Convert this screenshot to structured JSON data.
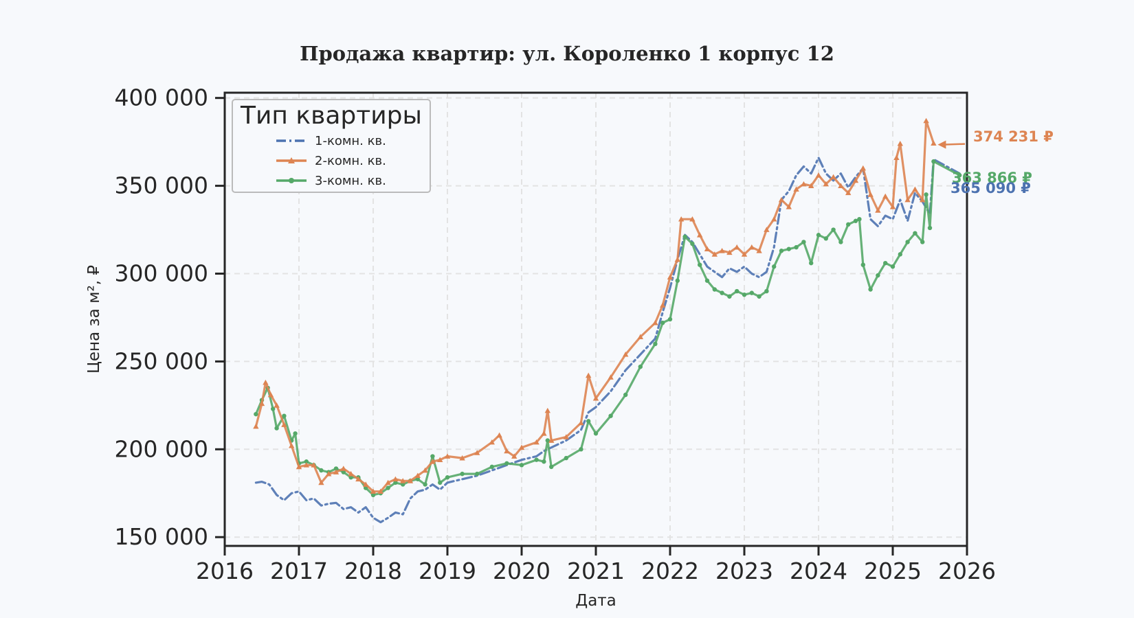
{
  "chart_data": {
    "type": "line",
    "title": "Продажа квартир: ул. Короленко 1 корпус 12",
    "xlabel": "Дата",
    "ylabel": "Цена за м², ₽",
    "xlim": [
      2016,
      2026
    ],
    "ylim": [
      145000,
      403000
    ],
    "xticks": [
      2016,
      2017,
      2018,
      2019,
      2020,
      2021,
      2022,
      2023,
      2024,
      2025,
      2026
    ],
    "yticks": [
      150000,
      200000,
      250000,
      300000,
      350000,
      400000
    ],
    "ytick_labels": [
      "150 000",
      "200 000",
      "250 000",
      "300 000",
      "350 000",
      "400 000"
    ],
    "grid": true,
    "legend": {
      "title": "Тип квартиры",
      "placement": "top-left"
    },
    "series": [
      {
        "name": "1-комн. кв.",
        "color": "#4c72b0",
        "style": "dash-dot",
        "end_label": "365 090 ₽",
        "points": [
          [
            2016.42,
            181000
          ],
          [
            2016.5,
            181500
          ],
          [
            2016.6,
            180000
          ],
          [
            2016.7,
            174000
          ],
          [
            2016.8,
            171000
          ],
          [
            2016.9,
            175000
          ],
          [
            2017.0,
            176000
          ],
          [
            2017.1,
            171000
          ],
          [
            2017.2,
            172000
          ],
          [
            2017.3,
            168000
          ],
          [
            2017.4,
            169000
          ],
          [
            2017.5,
            169500
          ],
          [
            2017.6,
            166000
          ],
          [
            2017.7,
            167000
          ],
          [
            2017.8,
            164000
          ],
          [
            2017.9,
            167000
          ],
          [
            2018.0,
            161000
          ],
          [
            2018.1,
            158500
          ],
          [
            2018.2,
            161000
          ],
          [
            2018.3,
            164000
          ],
          [
            2018.4,
            163000
          ],
          [
            2018.5,
            172000
          ],
          [
            2018.6,
            176000
          ],
          [
            2018.7,
            177000
          ],
          [
            2018.8,
            180000
          ],
          [
            2018.9,
            177000
          ],
          [
            2019.0,
            181000
          ],
          [
            2019.2,
            183000
          ],
          [
            2019.4,
            185000
          ],
          [
            2019.6,
            188000
          ],
          [
            2019.8,
            191000
          ],
          [
            2020.0,
            194000
          ],
          [
            2020.2,
            196000
          ],
          [
            2020.3,
            199000
          ],
          [
            2020.4,
            201000
          ],
          [
            2020.6,
            205000
          ],
          [
            2020.8,
            211000
          ],
          [
            2020.9,
            221000
          ],
          [
            2021.0,
            224000
          ],
          [
            2021.2,
            233000
          ],
          [
            2021.4,
            245000
          ],
          [
            2021.6,
            254000
          ],
          [
            2021.8,
            263000
          ],
          [
            2021.9,
            278000
          ],
          [
            2022.0,
            292000
          ],
          [
            2022.1,
            308000
          ],
          [
            2022.2,
            322000
          ],
          [
            2022.3,
            318000
          ],
          [
            2022.4,
            311000
          ],
          [
            2022.5,
            304000
          ],
          [
            2022.6,
            301000
          ],
          [
            2022.7,
            298000
          ],
          [
            2022.8,
            303000
          ],
          [
            2022.9,
            301000
          ],
          [
            2023.0,
            304000
          ],
          [
            2023.1,
            300000
          ],
          [
            2023.2,
            298000
          ],
          [
            2023.3,
            301000
          ],
          [
            2023.4,
            315000
          ],
          [
            2023.5,
            342000
          ],
          [
            2023.6,
            347000
          ],
          [
            2023.7,
            356000
          ],
          [
            2023.8,
            361000
          ],
          [
            2023.9,
            357000
          ],
          [
            2024.0,
            366000
          ],
          [
            2024.1,
            357000
          ],
          [
            2024.2,
            353000
          ],
          [
            2024.3,
            357000
          ],
          [
            2024.4,
            349000
          ],
          [
            2024.5,
            355000
          ],
          [
            2024.6,
            360000
          ],
          [
            2024.7,
            331000
          ],
          [
            2024.8,
            327000
          ],
          [
            2024.9,
            333000
          ],
          [
            2025.0,
            331000
          ],
          [
            2025.1,
            342000
          ],
          [
            2025.2,
            330000
          ],
          [
            2025.3,
            346000
          ],
          [
            2025.4,
            341000
          ],
          [
            2025.5,
            334000
          ],
          [
            2025.55,
            365090
          ],
          [
            2025.9,
            357000
          ]
        ]
      },
      {
        "name": "2-комн. кв.",
        "color": "#dd8452",
        "style": "solid-triangle",
        "end_label": "374 231 ₽",
        "points": [
          [
            2016.42,
            213000
          ],
          [
            2016.5,
            226000
          ],
          [
            2016.55,
            238000
          ],
          [
            2016.62,
            231000
          ],
          [
            2016.7,
            225000
          ],
          [
            2016.8,
            214000
          ],
          [
            2016.9,
            202000
          ],
          [
            2017.0,
            190000
          ],
          [
            2017.1,
            191000
          ],
          [
            2017.2,
            191000
          ],
          [
            2017.3,
            181000
          ],
          [
            2017.4,
            186000
          ],
          [
            2017.5,
            187000
          ],
          [
            2017.6,
            189000
          ],
          [
            2017.7,
            186000
          ],
          [
            2017.8,
            183000
          ],
          [
            2017.9,
            180000
          ],
          [
            2018.0,
            176000
          ],
          [
            2018.1,
            176000
          ],
          [
            2018.2,
            181000
          ],
          [
            2018.3,
            183000
          ],
          [
            2018.4,
            182000
          ],
          [
            2018.5,
            182000
          ],
          [
            2018.6,
            185000
          ],
          [
            2018.7,
            188000
          ],
          [
            2018.8,
            193000
          ],
          [
            2018.9,
            194000
          ],
          [
            2019.0,
            196000
          ],
          [
            2019.2,
            195000
          ],
          [
            2019.4,
            198000
          ],
          [
            2019.6,
            204000
          ],
          [
            2019.7,
            208000
          ],
          [
            2019.8,
            199000
          ],
          [
            2019.9,
            196000
          ],
          [
            2020.0,
            201000
          ],
          [
            2020.2,
            204000
          ],
          [
            2020.3,
            209000
          ],
          [
            2020.35,
            222000
          ],
          [
            2020.4,
            205000
          ],
          [
            2020.6,
            207000
          ],
          [
            2020.8,
            215000
          ],
          [
            2020.9,
            242000
          ],
          [
            2021.0,
            229000
          ],
          [
            2021.2,
            241000
          ],
          [
            2021.4,
            254000
          ],
          [
            2021.6,
            264000
          ],
          [
            2021.8,
            272000
          ],
          [
            2021.9,
            282000
          ],
          [
            2022.0,
            298000
          ],
          [
            2022.1,
            308000
          ],
          [
            2022.15,
            331000
          ],
          [
            2022.3,
            331000
          ],
          [
            2022.4,
            322000
          ],
          [
            2022.5,
            314000
          ],
          [
            2022.6,
            311000
          ],
          [
            2022.7,
            313000
          ],
          [
            2022.8,
            312000
          ],
          [
            2022.9,
            315000
          ],
          [
            2023.0,
            311000
          ],
          [
            2023.1,
            315000
          ],
          [
            2023.2,
            313000
          ],
          [
            2023.3,
            325000
          ],
          [
            2023.4,
            331000
          ],
          [
            2023.5,
            342000
          ],
          [
            2023.6,
            338000
          ],
          [
            2023.7,
            348000
          ],
          [
            2023.8,
            351000
          ],
          [
            2023.9,
            350000
          ],
          [
            2024.0,
            356000
          ],
          [
            2024.1,
            351000
          ],
          [
            2024.2,
            355000
          ],
          [
            2024.3,
            350000
          ],
          [
            2024.4,
            346000
          ],
          [
            2024.5,
            353000
          ],
          [
            2024.6,
            360000
          ],
          [
            2024.7,
            345000
          ],
          [
            2024.8,
            336000
          ],
          [
            2024.9,
            344000
          ],
          [
            2025.0,
            338000
          ],
          [
            2025.05,
            366000
          ],
          [
            2025.1,
            374000
          ],
          [
            2025.2,
            342000
          ],
          [
            2025.3,
            348000
          ],
          [
            2025.4,
            342000
          ],
          [
            2025.45,
            387000
          ],
          [
            2025.55,
            374231
          ]
        ]
      },
      {
        "name": "3-комн. кв.",
        "color": "#55a868",
        "style": "solid-dot",
        "end_label": "363 866 ₽",
        "points": [
          [
            2016.42,
            220000
          ],
          [
            2016.5,
            228000
          ],
          [
            2016.58,
            235000
          ],
          [
            2016.65,
            223000
          ],
          [
            2016.7,
            212000
          ],
          [
            2016.8,
            219000
          ],
          [
            2016.9,
            205000
          ],
          [
            2016.95,
            209000
          ],
          [
            2017.0,
            192000
          ],
          [
            2017.1,
            193000
          ],
          [
            2017.2,
            191000
          ],
          [
            2017.3,
            188000
          ],
          [
            2017.4,
            187000
          ],
          [
            2017.5,
            189000
          ],
          [
            2017.6,
            187000
          ],
          [
            2017.7,
            184000
          ],
          [
            2017.8,
            184000
          ],
          [
            2017.9,
            178000
          ],
          [
            2018.0,
            174000
          ],
          [
            2018.1,
            175000
          ],
          [
            2018.2,
            178000
          ],
          [
            2018.3,
            181000
          ],
          [
            2018.4,
            180000
          ],
          [
            2018.5,
            182000
          ],
          [
            2018.6,
            183000
          ],
          [
            2018.7,
            180000
          ],
          [
            2018.8,
            196000
          ],
          [
            2018.9,
            181000
          ],
          [
            2019.0,
            184000
          ],
          [
            2019.2,
            186000
          ],
          [
            2019.4,
            186000
          ],
          [
            2019.6,
            190000
          ],
          [
            2019.8,
            192000
          ],
          [
            2020.0,
            191000
          ],
          [
            2020.2,
            194000
          ],
          [
            2020.3,
            193000
          ],
          [
            2020.35,
            205000
          ],
          [
            2020.4,
            190000
          ],
          [
            2020.6,
            195000
          ],
          [
            2020.8,
            200000
          ],
          [
            2020.9,
            216000
          ],
          [
            2021.0,
            209000
          ],
          [
            2021.2,
            219000
          ],
          [
            2021.4,
            231000
          ],
          [
            2021.6,
            247000
          ],
          [
            2021.8,
            260000
          ],
          [
            2021.9,
            272000
          ],
          [
            2022.0,
            274000
          ],
          [
            2022.1,
            296000
          ],
          [
            2022.2,
            321000
          ],
          [
            2022.3,
            317000
          ],
          [
            2022.4,
            305000
          ],
          [
            2022.5,
            296000
          ],
          [
            2022.6,
            291000
          ],
          [
            2022.7,
            289000
          ],
          [
            2022.8,
            287000
          ],
          [
            2022.9,
            290000
          ],
          [
            2023.0,
            288000
          ],
          [
            2023.1,
            289000
          ],
          [
            2023.2,
            287000
          ],
          [
            2023.3,
            290000
          ],
          [
            2023.4,
            304000
          ],
          [
            2023.5,
            313000
          ],
          [
            2023.6,
            314000
          ],
          [
            2023.7,
            315000
          ],
          [
            2023.8,
            318000
          ],
          [
            2023.9,
            306000
          ],
          [
            2024.0,
            322000
          ],
          [
            2024.1,
            320000
          ],
          [
            2024.2,
            325000
          ],
          [
            2024.3,
            318000
          ],
          [
            2024.4,
            328000
          ],
          [
            2024.5,
            330000
          ],
          [
            2024.55,
            331000
          ],
          [
            2024.6,
            305000
          ],
          [
            2024.7,
            291000
          ],
          [
            2024.8,
            299000
          ],
          [
            2024.9,
            306000
          ],
          [
            2025.0,
            304000
          ],
          [
            2025.1,
            311000
          ],
          [
            2025.2,
            318000
          ],
          [
            2025.3,
            323000
          ],
          [
            2025.4,
            318000
          ],
          [
            2025.45,
            345000
          ],
          [
            2025.5,
            326000
          ],
          [
            2025.55,
            363866
          ],
          [
            2025.9,
            356000
          ]
        ]
      }
    ]
  }
}
